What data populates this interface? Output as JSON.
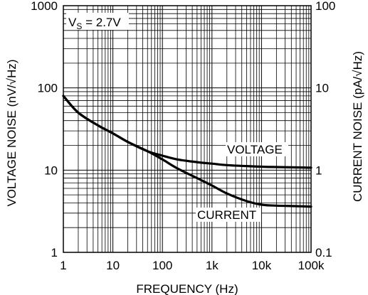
{
  "chart_data": {
    "type": "line",
    "x_scale": "log",
    "y_scale": "log",
    "grid": true,
    "xlabel": "FREQUENCY (Hz)",
    "ylabel_left": "VOLTAGE NOISE (nV/√Hz)",
    "ylabel_right": "CURRENT NOISE (pA/√Hz)",
    "xlim": [
      1,
      100000
    ],
    "ylim_left": [
      1,
      1000
    ],
    "ylim_right": [
      0.1,
      100
    ],
    "x_ticks": [
      {
        "value": 1,
        "label": "1"
      },
      {
        "value": 10,
        "label": "10"
      },
      {
        "value": 100,
        "label": "100"
      },
      {
        "value": 1000,
        "label": "1k"
      },
      {
        "value": 10000,
        "label": "10k"
      },
      {
        "value": 100000,
        "label": "100k"
      }
    ],
    "y_ticks_left": [
      {
        "value": 1,
        "label": "1"
      },
      {
        "value": 10,
        "label": "10"
      },
      {
        "value": 100,
        "label": "100"
      },
      {
        "value": 1000,
        "label": "1000"
      }
    ],
    "y_ticks_right": [
      {
        "value": 0.1,
        "label": "0.1"
      },
      {
        "value": 1,
        "label": "1"
      },
      {
        "value": 10,
        "label": "10"
      },
      {
        "value": 100,
        "label": "100"
      }
    ],
    "condition_label": "V",
    "condition_label_sub": "S",
    "condition_label_rest": " = 2.7V",
    "series": [
      {
        "name": "VOLTAGE",
        "axis": "left",
        "x": [
          1,
          2,
          5,
          10,
          20,
          50,
          100,
          200,
          500,
          1000,
          2000,
          5000,
          10000,
          20000,
          50000,
          100000
        ],
        "y": [
          80,
          50,
          35,
          28,
          22,
          17,
          15,
          13.5,
          12.5,
          12,
          11.5,
          11.2,
          11,
          10.9,
          10.8,
          10.7
        ]
      },
      {
        "name": "CURRENT",
        "axis": "right",
        "x": [
          1,
          2,
          5,
          10,
          20,
          50,
          100,
          200,
          500,
          1000,
          2000,
          5000,
          10000,
          20000,
          50000,
          100000
        ],
        "y": [
          8,
          5,
          3.5,
          2.8,
          2.2,
          1.7,
          1.35,
          1.05,
          0.8,
          0.65,
          0.52,
          0.42,
          0.38,
          0.37,
          0.365,
          0.36
        ]
      }
    ]
  }
}
